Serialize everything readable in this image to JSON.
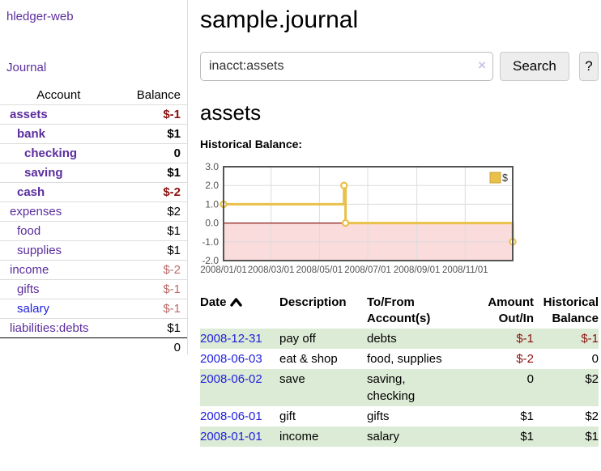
{
  "sidebar": {
    "app_title": "hledger-web",
    "journal_link": "Journal",
    "accounts_table": {
      "account_header": "Account",
      "balance_header": "Balance",
      "rows": [
        {
          "name": "assets",
          "balance": "$-1",
          "level": 1,
          "bold": true,
          "balance_class": "neg-strong"
        },
        {
          "name": "bank",
          "balance": "$1",
          "level": 2,
          "bold": true,
          "balance_class": ""
        },
        {
          "name": "checking",
          "balance": "0",
          "level": 3,
          "bold": true,
          "balance_class": ""
        },
        {
          "name": "saving",
          "balance": "$1",
          "level": 3,
          "bold": true,
          "balance_class": ""
        },
        {
          "name": "cash",
          "balance": "$-2",
          "level": 2,
          "bold": true,
          "balance_class": "neg-strong"
        },
        {
          "name": "expenses",
          "balance": "$2",
          "level": 1,
          "bold": false,
          "balance_class": ""
        },
        {
          "name": "food",
          "balance": "$1",
          "level": 2,
          "bold": false,
          "balance_class": ""
        },
        {
          "name": "supplies",
          "balance": "$1",
          "level": 2,
          "bold": false,
          "balance_class": ""
        },
        {
          "name": "income",
          "balance": "$-2",
          "level": 1,
          "bold": false,
          "balance_class": "neg-soft"
        },
        {
          "name": "gifts",
          "balance": "$-1",
          "level": 2,
          "bold": false,
          "balance_class": "neg-soft"
        },
        {
          "name": "salary",
          "balance": "$-1",
          "level": 2,
          "bold": false,
          "balance_class": "neg-soft",
          "link_blue": true
        },
        {
          "name": "liabilities:debts",
          "balance": "$1",
          "level": 1,
          "bold": false,
          "balance_class": ""
        }
      ],
      "total": "0"
    }
  },
  "header": {
    "title": "sample.journal"
  },
  "search": {
    "value": "inacct:assets",
    "clear_icon": "×",
    "button_label": "Search",
    "help_label": "?"
  },
  "account_page": {
    "heading": "assets",
    "chart_title": "Historical Balance:"
  },
  "chart_data": {
    "type": "line",
    "style": "step-after",
    "title": "Historical Balance",
    "series": [
      {
        "name": "$",
        "points": [
          [
            "2008-01-01",
            1
          ],
          [
            "2008-06-01",
            2
          ],
          [
            "2008-06-03",
            0
          ],
          [
            "2008-12-31",
            -1
          ]
        ]
      }
    ],
    "x_range": [
      "2008-01-01",
      "2008-12-31"
    ],
    "x_ticks": [
      "2008/01/01",
      "2008/03/01",
      "2008/05/01",
      "2008/07/01",
      "2008/09/01",
      "2008/11/01"
    ],
    "y_ticks": [
      "3.0",
      "2.0",
      "1.0",
      "0.0",
      "-1.0",
      "-2.0"
    ],
    "ylim": [
      -2,
      3
    ],
    "grid": true,
    "legend": {
      "label": "$",
      "position": "top-right"
    },
    "colors": {
      "line": "#e9c04a",
      "marker_fill": "#ffffff",
      "negative_region": "#fbdcdc",
      "zero_line": "#8b1a1a",
      "grid": "#dcdcdc",
      "border": "#545454",
      "tick_text": "#545454"
    }
  },
  "register": {
    "columns": [
      {
        "label": "Date",
        "align": "left",
        "sort_icon": "chevron-up"
      },
      {
        "label": "Description",
        "align": "left"
      },
      {
        "label": "To/From Account(s)",
        "align": "left"
      },
      {
        "label": "Amount Out/In",
        "align": "right"
      },
      {
        "label": "Historical Balance",
        "align": "right"
      }
    ],
    "rows": [
      {
        "date": "2008-12-31",
        "description": "pay off",
        "accounts": [
          "debts"
        ],
        "amount": "$-1",
        "amount_neg": true,
        "balance": "$-1",
        "balance_neg": true,
        "green": true
      },
      {
        "date": "2008-06-03",
        "description": "eat & shop",
        "accounts": [
          "food",
          "supplies"
        ],
        "amount": "$-2",
        "amount_neg": true,
        "balance": "0",
        "balance_neg": false,
        "green": false
      },
      {
        "date": "2008-06-02",
        "description": "save",
        "accounts": [
          "saving",
          "checking"
        ],
        "amount": "0",
        "amount_neg": false,
        "balance": "$2",
        "balance_neg": false,
        "green": true
      },
      {
        "date": "2008-06-01",
        "description": "gift",
        "accounts": [
          "gifts"
        ],
        "amount": "$1",
        "amount_neg": false,
        "balance": "$2",
        "balance_neg": false,
        "green": false
      },
      {
        "date": "2008-01-01",
        "description": "income",
        "accounts": [
          "salary"
        ],
        "amount": "$1",
        "amount_neg": false,
        "balance": "$1",
        "balance_neg": false,
        "green": true
      }
    ]
  }
}
